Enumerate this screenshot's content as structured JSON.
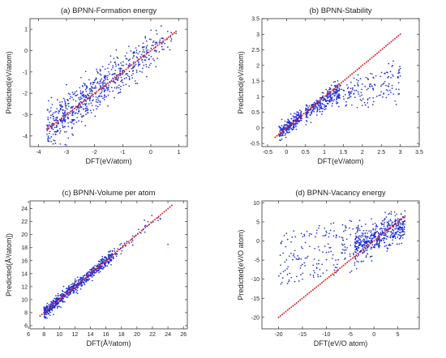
{
  "chart_data": [
    {
      "type": "scatter",
      "title": "(a) BPNN-Formation energy",
      "xlabel": "DFT(eV/atom)",
      "ylabel": "Predicted(eV/atom)",
      "xlim": [
        -4.3,
        1.3
      ],
      "ylim": [
        -4.5,
        1.5
      ],
      "xticks": [
        -4,
        -3,
        -2,
        -1,
        0,
        1
      ],
      "yticks": [
        -4,
        -3,
        -2,
        -1,
        0,
        1
      ],
      "grid": false,
      "series": [
        {
          "color": "#1f2fd6",
          "marker": "dot",
          "n_points": 700,
          "x_range": [
            -3.8,
            0.9
          ],
          "approx_relation": "y = x + noise(sd ≈ 0.45)",
          "points": [
            [
              -3.7,
              -3.5
            ],
            [
              -3.5,
              -3.0
            ],
            [
              -3.2,
              -2.6
            ],
            [
              -3.0,
              -1.6
            ],
            [
              -2.8,
              -2.2
            ],
            [
              -2.5,
              -1.9
            ],
            [
              -2.2,
              -2.5
            ],
            [
              -2.0,
              -1.4
            ],
            [
              -1.5,
              -1.0
            ],
            [
              -1.0,
              -1.5
            ],
            [
              -0.5,
              -0.3
            ],
            [
              0.0,
              -0.6
            ],
            [
              0.3,
              0.4
            ],
            [
              0.6,
              0.9
            ],
            [
              0.9,
              0.8
            ]
          ]
        },
        {
          "color": "#e02020",
          "marker": "dot",
          "relation": "y = x",
          "x_range": [
            -3.7,
            0.9
          ]
        }
      ]
    },
    {
      "type": "scatter",
      "title": "(b) BPNN-Stability",
      "xlabel": "DFT(eV/atom)",
      "ylabel": "Predicted(eV/atom)",
      "xlim": [
        -0.65,
        3.5
      ],
      "ylim": [
        -0.6,
        3.5
      ],
      "xticks": [
        -0.5,
        0.0,
        0.5,
        1.0,
        1.5,
        2.0,
        2.5,
        3.0,
        3.5
      ],
      "yticks": [
        -0.5,
        0.0,
        0.5,
        1.0,
        1.5,
        2.0,
        2.5,
        3.0,
        3.5
      ],
      "grid": false,
      "series": [
        {
          "color": "#1f2fd6",
          "marker": "dot",
          "n_points": 650,
          "x_range": [
            -0.2,
            3.0
          ],
          "approx_relation": "clustered 0–0.4 near diagonal; spread below diagonal for x > 0.5",
          "points": [
            [
              -0.2,
              0.05
            ],
            [
              0.0,
              0.1
            ],
            [
              0.2,
              0.25
            ],
            [
              0.4,
              0.3
            ],
            [
              0.6,
              0.7
            ],
            [
              0.8,
              0.8
            ],
            [
              1.0,
              0.9
            ],
            [
              1.2,
              0.7
            ],
            [
              1.5,
              1.0
            ],
            [
              1.8,
              1.2
            ],
            [
              2.0,
              1.4
            ],
            [
              2.3,
              1.6
            ],
            [
              2.6,
              1.75
            ],
            [
              2.8,
              2.0
            ],
            [
              3.0,
              1.9
            ]
          ]
        },
        {
          "color": "#e02020",
          "marker": "dot",
          "relation": "y = x",
          "x_range": [
            -0.3,
            3.0
          ]
        }
      ]
    },
    {
      "type": "scatter",
      "title": "(c) BPNN-Volume per atom",
      "xlabel": "DFT(Å³/atom)",
      "ylabel": "Predicted(Å³/atom])",
      "xlim": [
        6.2,
        26.5
      ],
      "ylim": [
        5.5,
        25.2
      ],
      "xticks": [
        6,
        8,
        10,
        12,
        14,
        16,
        18,
        20,
        22,
        24,
        26
      ],
      "yticks": [
        6,
        8,
        10,
        12,
        14,
        16,
        18,
        20,
        22,
        24
      ],
      "grid": false,
      "series": [
        {
          "color": "#1f2fd6",
          "marker": "dot",
          "n_points": 700,
          "x_range": [
            8,
            24.5
          ],
          "approx_relation": "y = x + noise(sd ≈ 0.45)",
          "points": [
            [
              8.2,
              8.0
            ],
            [
              9.5,
              9.8
            ],
            [
              10.5,
              10.2
            ],
            [
              11.5,
              11.9
            ],
            [
              12.5,
              12.2
            ],
            [
              13.5,
              13.9
            ],
            [
              14.5,
              14.1
            ],
            [
              15.5,
              15.9
            ],
            [
              16.5,
              16.2
            ],
            [
              17.5,
              17.8
            ],
            [
              19.0,
              18.7
            ],
            [
              21.0,
              21.3
            ],
            [
              23.0,
              22.5
            ],
            [
              24.0,
              18.5
            ]
          ]
        },
        {
          "color": "#e02020",
          "marker": "dot",
          "relation": "y = x",
          "x_range": [
            7.5,
            24.5
          ]
        }
      ]
    },
    {
      "type": "scatter",
      "title": "(d) BPNN-Vacancy energy",
      "xlabel": "DFT(eV/O atom)",
      "ylabel": "Predicted(eV/O atom)",
      "xlim": [
        -23.5,
        9.5
      ],
      "ylim": [
        -23,
        10.5
      ],
      "xticks": [
        -20,
        -15,
        -10,
        -5,
        0,
        5
      ],
      "yticks": [
        -20,
        -15,
        -10,
        -5,
        0,
        5,
        10
      ],
      "grid": false,
      "series": [
        {
          "color": "#1f2fd6",
          "marker": "dot",
          "n_points": 650,
          "x_range": [
            -20,
            6.5
          ],
          "approx_relation": "concentrated 0–6, predictions compressed toward 0",
          "points": [
            [
              -19,
              -8
            ],
            [
              -15,
              -10
            ],
            [
              -12,
              -7
            ],
            [
              -10,
              -3
            ],
            [
              -8,
              -5
            ],
            [
              -5,
              -4
            ],
            [
              -3,
              -1
            ],
            [
              -1,
              0
            ],
            [
              0,
              1
            ],
            [
              1,
              2
            ],
            [
              2,
              1.5
            ],
            [
              3,
              3
            ],
            [
              4,
              2
            ],
            [
              5,
              4
            ],
            [
              6,
              5
            ]
          ]
        },
        {
          "color": "#e02020",
          "marker": "dot",
          "relation": "y = x",
          "x_range": [
            -20,
            6.5
          ]
        }
      ]
    }
  ]
}
